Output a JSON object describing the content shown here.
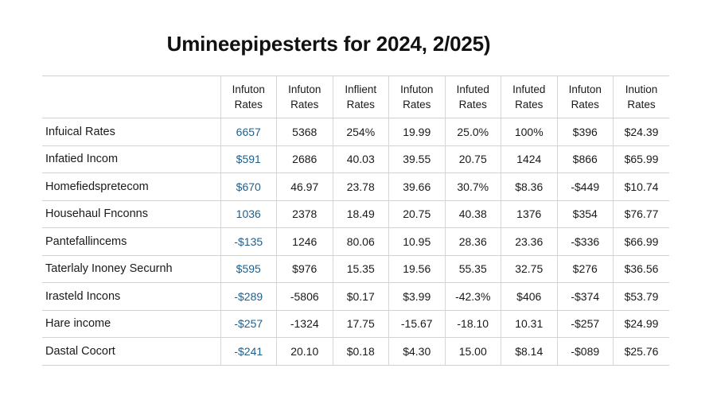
{
  "page": {
    "title": "Umineepipesterts for 2024, 2/025)"
  },
  "colors": {
    "text": "#1a1a1a",
    "accent_column": "#1e5f8a",
    "grid": "#d2d2d2"
  },
  "chart_data": {
    "type": "table",
    "title": "Umineepipesterts for 2024, 2/025)",
    "columns": [
      [
        "Infuton",
        "Rates"
      ],
      [
        "Infuton",
        "Rates"
      ],
      [
        "Inflient",
        "Rates"
      ],
      [
        "Infuton",
        "Rates"
      ],
      [
        "Infuted",
        "Rates"
      ],
      [
        "Infuted",
        "Rates"
      ],
      [
        "Infuton",
        "Rates"
      ],
      [
        "Inution",
        "Rates"
      ]
    ],
    "rows": [
      {
        "label": "Infuical Rates",
        "cells": [
          "6657",
          "5368",
          "254%",
          "19.99",
          "25.0%",
          "100%",
          "$396",
          "$24.39"
        ]
      },
      {
        "label": "Infatied Incom",
        "cells": [
          "$591",
          "2686",
          "40.03",
          "39.55",
          "20.75",
          "1424",
          "$866",
          "$65.99"
        ]
      },
      {
        "label": "Homefiedspretecom",
        "cells": [
          "$670",
          "46.97",
          "23.78",
          "39.66",
          "30.7%",
          "$8.36",
          "-$449",
          "$10.74"
        ]
      },
      {
        "label": "Househaul Fnconns",
        "cells": [
          "1036",
          "2378",
          "18.49",
          "20.75",
          "40.38",
          "1376",
          "$354",
          "$76.77"
        ]
      },
      {
        "label": "Pantefallincems",
        "cells": [
          "-$135",
          "1246",
          "80.06",
          "10.95",
          "28.36",
          "23.36",
          "-$336",
          "$66.99"
        ]
      },
      {
        "label": "Taterlaly Inoney Securnh",
        "cells": [
          "$595",
          "$976",
          "15.35",
          "19.56",
          "55.35",
          "32.75",
          "$276",
          "$36.56"
        ]
      },
      {
        "label": "Irasteld Incons",
        "cells": [
          "-$289",
          "-5806",
          "$0.17",
          "$3.99",
          "-42.3%",
          "$406",
          "-$374",
          "$53.79"
        ]
      },
      {
        "label": "Hare income",
        "cells": [
          "-$257",
          "-1324",
          "17.75",
          "-15.67",
          "-18.10",
          "10.31",
          "-$257",
          "$24.99"
        ]
      },
      {
        "label": "Dastal Cocort",
        "cells": [
          "-$241",
          "20.10",
          "$0.18",
          "$4.30",
          "15.00",
          "$8.14",
          "-$089",
          "$25.76"
        ]
      }
    ]
  }
}
